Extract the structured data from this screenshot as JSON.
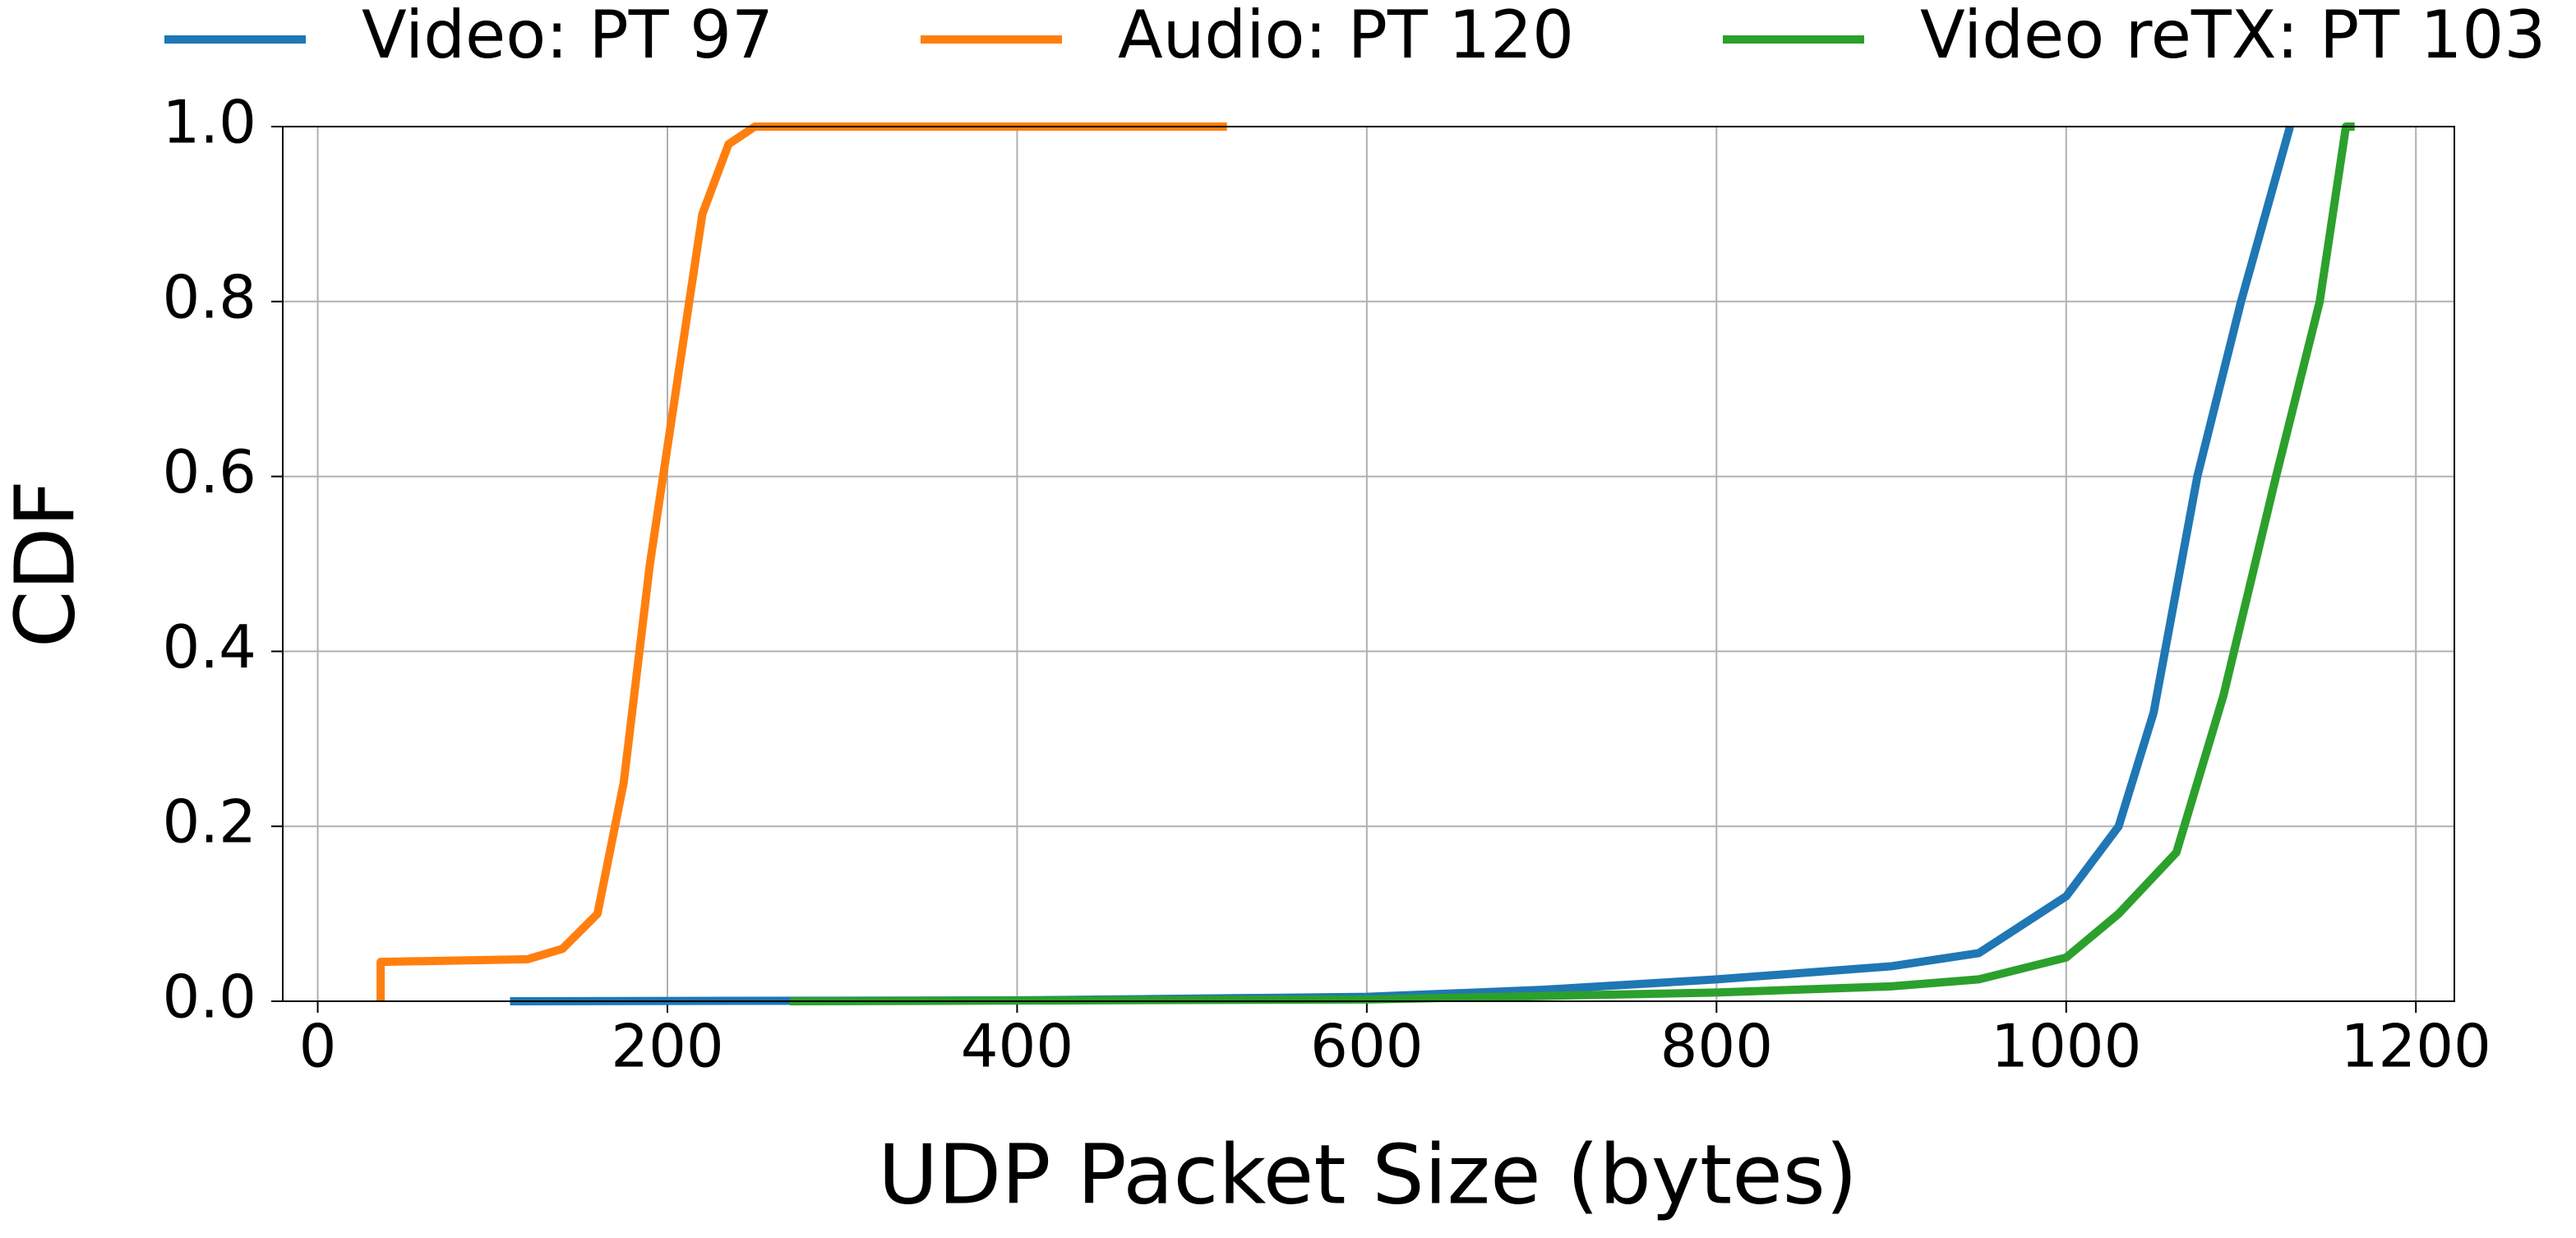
{
  "chart_data": {
    "type": "line",
    "xlabel": "UDP Packet Size (bytes)",
    "ylabel": "CDF",
    "xlim": [
      -20,
      1222
    ],
    "ylim": [
      0,
      1
    ],
    "xticks": [
      0,
      200,
      400,
      600,
      800,
      1000,
      1200
    ],
    "yticks": [
      {
        "value": 0,
        "label": "0.0"
      },
      0.2,
      0.4,
      0.6,
      0.8,
      {
        "value": 1,
        "label": "1.0"
      }
    ],
    "grid": true,
    "legend": "top",
    "series": [
      {
        "name": "Video: PT 97",
        "color": "#1f77b4",
        "x": [
          110,
          400,
          600,
          700,
          800,
          900,
          950,
          1000,
          1030,
          1050,
          1075,
          1100,
          1128
        ],
        "values": [
          0,
          0.001,
          0.005,
          0.013,
          0.025,
          0.04,
          0.055,
          0.12,
          0.2,
          0.33,
          0.6,
          0.8,
          1.0
        ]
      },
      {
        "name": "Audio: PT 120",
        "color": "#ff7f0e",
        "x": [
          36,
          36,
          120,
          140,
          160,
          175,
          190,
          205,
          220,
          235,
          250,
          520
        ],
        "values": [
          0,
          0.045,
          0.048,
          0.06,
          0.1,
          0.25,
          0.5,
          0.7,
          0.9,
          0.98,
          1.0,
          1.0
        ]
      },
      {
        "name": "Video reTX: PT 103",
        "color": "#2ca02c",
        "x": [
          270,
          600,
          800,
          900,
          950,
          1000,
          1030,
          1063,
          1090,
          1120,
          1145,
          1160,
          1165
        ],
        "values": [
          0,
          0.002,
          0.01,
          0.017,
          0.025,
          0.05,
          0.1,
          0.17,
          0.35,
          0.6,
          0.8,
          1.0,
          1.0
        ]
      }
    ]
  }
}
